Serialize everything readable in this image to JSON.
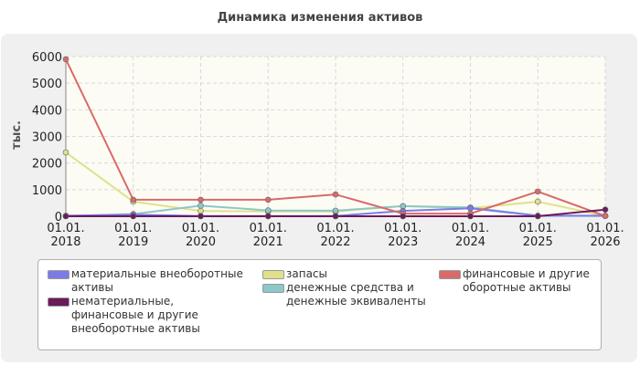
{
  "chart_data": {
    "type": "line",
    "title": "Динамика изменения активов",
    "ylabel": "тыс.",
    "xlabel": "",
    "ylim": [
      0,
      6000
    ],
    "yticks": [
      0,
      1000,
      2000,
      3000,
      4000,
      5000,
      6000
    ],
    "categories": [
      "01.01.\n2018",
      "01.01.\n2019",
      "01.01.\n2020",
      "01.01.\n2021",
      "01.01.\n2022",
      "01.01.\n2023",
      "01.01.\n2024",
      "01.01.\n2025",
      "01.01.\n2026"
    ],
    "grid": true,
    "legend_position": "bottom",
    "series": [
      {
        "name": "материальные внеоборотные активы",
        "color": "#7b7be8",
        "values": [
          20,
          60,
          10,
          10,
          10,
          200,
          300,
          20,
          20
        ]
      },
      {
        "name": "нематериальные, финансовые и другие внеоборотные активы",
        "color": "#6b1a5a",
        "values": [
          0,
          0,
          0,
          0,
          0,
          0,
          0,
          0,
          250
        ]
      },
      {
        "name": "запасы",
        "color": "#e0e08a",
        "values": [
          2400,
          550,
          200,
          180,
          180,
          380,
          300,
          550,
          10
        ]
      },
      {
        "name": "денежные средства и денежные эквиваленты",
        "color": "#8cc8c8",
        "values": [
          10,
          80,
          400,
          220,
          210,
          380,
          330,
          20,
          10
        ]
      },
      {
        "name": "финансовые и другие оборотные активы",
        "color": "#d96a6a",
        "values": [
          5900,
          620,
          620,
          620,
          820,
          100,
          100,
          930,
          10
        ]
      }
    ]
  }
}
